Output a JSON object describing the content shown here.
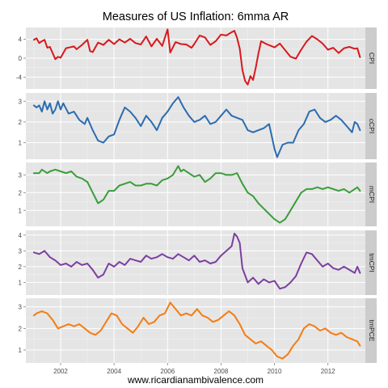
{
  "chart_data": {
    "type": "line",
    "title": "Measures of US Inflation: 6mma AR",
    "caption": "www.ricardianambivalence.com",
    "x_ticks": [
      "2002",
      "2004",
      "2006",
      "2008",
      "2010",
      "2012"
    ],
    "xlim": [
      2000.7,
      2013.4
    ],
    "grid": true,
    "panels": [
      {
        "name": "CPI",
        "color": "#d7191c",
        "ylim": [
          -6.5,
          6.5
        ],
        "y_ticks": [
          4,
          0,
          -4
        ],
        "y_tick_labels": [
          "4",
          "0",
          "-4"
        ],
        "x": [
          2001.0,
          2001.1,
          2001.2,
          2001.3,
          2001.4,
          2001.5,
          2001.6,
          2001.7,
          2001.8,
          2001.9,
          2002.0,
          2002.2,
          2002.5,
          2002.6,
          2002.8,
          2003.0,
          2003.1,
          2003.2,
          2003.4,
          2003.6,
          2003.8,
          2004.0,
          2004.2,
          2004.4,
          2004.6,
          2004.8,
          2005.0,
          2005.2,
          2005.4,
          2005.6,
          2005.8,
          2006.0,
          2006.1,
          2006.3,
          2006.5,
          2006.7,
          2006.9,
          2007.0,
          2007.2,
          2007.4,
          2007.6,
          2007.8,
          2008.0,
          2008.2,
          2008.4,
          2008.5,
          2008.6,
          2008.7,
          2008.8,
          2008.9,
          2009.0,
          2009.1,
          2009.2,
          2009.3,
          2009.4,
          2009.5,
          2009.7,
          2010.0,
          2010.2,
          2010.4,
          2010.6,
          2010.8,
          2011.0,
          2011.2,
          2011.3,
          2011.4,
          2011.6,
          2011.8,
          2012.0,
          2012.2,
          2012.4,
          2012.6,
          2012.8,
          2013.0,
          2013.1,
          2013.2
        ],
        "y": [
          3.9,
          4.2,
          3.2,
          3.6,
          3.9,
          2.2,
          2.4,
          1.1,
          -0.2,
          0.3,
          0.1,
          2.1,
          2.5,
          1.9,
          2.8,
          3.9,
          1.5,
          1.3,
          3.3,
          2.8,
          3.9,
          3.0,
          4.0,
          3.3,
          4.1,
          3.2,
          2.9,
          4.6,
          2.5,
          4.1,
          2.6,
          6.1,
          1.2,
          3.4,
          3.0,
          2.9,
          2.2,
          3.0,
          4.8,
          4.4,
          2.8,
          3.6,
          5.0,
          4.8,
          5.5,
          5.8,
          4.3,
          2.0,
          -2.5,
          -4.8,
          -5.6,
          -3.8,
          -4.6,
          -2.0,
          1.0,
          3.6,
          3.0,
          2.3,
          3.1,
          1.7,
          0.3,
          -0.1,
          1.8,
          3.5,
          4.1,
          4.7,
          4.0,
          3.1,
          1.8,
          2.2,
          1.1,
          2.1,
          2.4,
          2.0,
          2.1,
          0.2
        ]
      },
      {
        "name": "cCPI",
        "color": "#2b6cb0",
        "ylim": [
          0.2,
          3.4
        ],
        "y_ticks": [
          1,
          2,
          3
        ],
        "y_tick_labels": [
          "1",
          "2",
          "3"
        ],
        "x": [
          2001.0,
          2001.1,
          2001.2,
          2001.3,
          2001.4,
          2001.5,
          2001.6,
          2001.7,
          2001.8,
          2001.9,
          2002.0,
          2002.1,
          2002.3,
          2002.5,
          2002.7,
          2002.9,
          2003.0,
          2003.2,
          2003.4,
          2003.6,
          2003.8,
          2004.0,
          2004.2,
          2004.4,
          2004.6,
          2004.8,
          2005.0,
          2005.2,
          2005.4,
          2005.6,
          2005.8,
          2006.0,
          2006.2,
          2006.4,
          2006.6,
          2006.8,
          2007.0,
          2007.2,
          2007.4,
          2007.6,
          2007.8,
          2008.0,
          2008.2,
          2008.4,
          2008.6,
          2008.8,
          2009.0,
          2009.2,
          2009.4,
          2009.6,
          2009.8,
          2010.0,
          2010.1,
          2010.3,
          2010.5,
          2010.7,
          2010.9,
          2011.1,
          2011.3,
          2011.5,
          2011.7,
          2011.9,
          2012.1,
          2012.3,
          2012.5,
          2012.7,
          2012.9,
          2013.0,
          2013.1,
          2013.2
        ],
        "y": [
          2.8,
          2.7,
          2.8,
          2.5,
          3.0,
          2.6,
          2.9,
          2.4,
          2.6,
          3.0,
          2.6,
          2.9,
          2.4,
          2.5,
          2.1,
          1.9,
          2.2,
          1.6,
          1.1,
          1.0,
          1.3,
          1.4,
          2.1,
          2.7,
          2.5,
          2.2,
          1.8,
          2.3,
          2.0,
          1.6,
          2.2,
          2.5,
          2.9,
          3.2,
          2.7,
          2.3,
          2.0,
          2.1,
          2.3,
          1.9,
          2.0,
          2.3,
          2.6,
          2.3,
          2.2,
          2.1,
          1.6,
          1.5,
          1.6,
          1.7,
          1.9,
          0.7,
          0.3,
          0.9,
          1.0,
          1.0,
          1.6,
          1.9,
          2.5,
          2.6,
          2.2,
          2.0,
          2.1,
          2.3,
          2.1,
          1.8,
          1.5,
          2.0,
          1.9,
          1.6
        ]
      },
      {
        "name": "mCPI",
        "color": "#3a9d3a",
        "ylim": [
          0.1,
          3.7
        ],
        "y_ticks": [
          1,
          2,
          3
        ],
        "y_tick_labels": [
          "1",
          "2",
          "3"
        ],
        "x": [
          2001.0,
          2001.2,
          2001.3,
          2001.5,
          2001.6,
          2001.8,
          2002.0,
          2002.2,
          2002.4,
          2002.6,
          2002.8,
          2003.0,
          2003.2,
          2003.4,
          2003.6,
          2003.8,
          2004.0,
          2004.2,
          2004.4,
          2004.6,
          2004.8,
          2005.0,
          2005.2,
          2005.4,
          2005.6,
          2005.8,
          2006.0,
          2006.2,
          2006.4,
          2006.5,
          2006.6,
          2006.8,
          2007.0,
          2007.2,
          2007.4,
          2007.6,
          2007.8,
          2008.0,
          2008.2,
          2008.4,
          2008.6,
          2008.8,
          2009.0,
          2009.2,
          2009.4,
          2009.6,
          2009.8,
          2010.0,
          2010.2,
          2010.4,
          2010.6,
          2010.8,
          2011.0,
          2011.2,
          2011.4,
          2011.6,
          2011.8,
          2012.0,
          2012.2,
          2012.4,
          2012.6,
          2012.8,
          2013.0,
          2013.1,
          2013.2
        ],
        "y": [
          3.1,
          3.1,
          3.3,
          3.1,
          3.2,
          3.3,
          3.2,
          3.1,
          3.2,
          2.9,
          2.8,
          2.6,
          2.0,
          1.4,
          1.6,
          2.1,
          2.1,
          2.4,
          2.5,
          2.6,
          2.4,
          2.4,
          2.5,
          2.5,
          2.4,
          2.7,
          2.8,
          3.0,
          3.5,
          3.2,
          3.3,
          3.1,
          2.9,
          3.0,
          2.6,
          2.8,
          3.1,
          3.1,
          3.0,
          3.0,
          3.1,
          2.5,
          2.0,
          1.8,
          1.4,
          1.1,
          0.8,
          0.5,
          0.3,
          0.5,
          1.0,
          1.5,
          2.0,
          2.2,
          2.2,
          2.3,
          2.2,
          2.3,
          2.2,
          2.1,
          2.2,
          2.0,
          2.2,
          2.3,
          2.1
        ]
      },
      {
        "name": "tmCPI",
        "color": "#7b3fa0",
        "ylim": [
          0.2,
          4.3
        ],
        "y_ticks": [
          1,
          2,
          3,
          4
        ],
        "y_tick_labels": [
          "1",
          "2",
          "3",
          "4"
        ],
        "x": [
          2001.0,
          2001.2,
          2001.4,
          2001.6,
          2001.8,
          2002.0,
          2002.2,
          2002.4,
          2002.6,
          2002.8,
          2003.0,
          2003.2,
          2003.4,
          2003.6,
          2003.8,
          2004.0,
          2004.2,
          2004.4,
          2004.6,
          2004.8,
          2005.0,
          2005.2,
          2005.4,
          2005.6,
          2005.8,
          2006.0,
          2006.2,
          2006.4,
          2006.6,
          2006.8,
          2007.0,
          2007.2,
          2007.4,
          2007.6,
          2007.8,
          2008.0,
          2008.2,
          2008.4,
          2008.5,
          2008.6,
          2008.7,
          2008.8,
          2009.0,
          2009.2,
          2009.4,
          2009.6,
          2009.8,
          2010.0,
          2010.2,
          2010.4,
          2010.6,
          2010.8,
          2011.0,
          2011.2,
          2011.4,
          2011.6,
          2011.8,
          2012.0,
          2012.2,
          2012.4,
          2012.6,
          2012.8,
          2013.0,
          2013.1,
          2013.2
        ],
        "y": [
          2.9,
          2.8,
          3.0,
          2.6,
          2.4,
          2.1,
          2.2,
          2.0,
          2.3,
          2.1,
          2.2,
          1.8,
          1.3,
          1.5,
          2.2,
          2.0,
          2.3,
          2.1,
          2.5,
          2.4,
          2.3,
          2.7,
          2.5,
          2.6,
          2.8,
          2.6,
          2.5,
          2.8,
          2.6,
          2.4,
          2.7,
          2.3,
          2.4,
          2.2,
          2.3,
          2.7,
          3.0,
          3.3,
          4.1,
          3.9,
          3.5,
          1.9,
          1.0,
          1.3,
          0.9,
          1.2,
          1.0,
          1.1,
          0.6,
          0.7,
          1.0,
          1.4,
          2.2,
          2.9,
          2.8,
          2.4,
          2.0,
          2.2,
          1.9,
          1.8,
          2.0,
          1.8,
          1.6,
          2.0,
          1.6
        ]
      },
      {
        "name": "tmPCE",
        "color": "#f57c12",
        "ylim": [
          0.4,
          3.4
        ],
        "y_ticks": [
          1,
          2,
          3
        ],
        "y_tick_labels": [
          "1",
          "2",
          "3"
        ],
        "x": [
          2001.0,
          2001.1,
          2001.3,
          2001.5,
          2001.7,
          2001.9,
          2002.1,
          2002.3,
          2002.5,
          2002.7,
          2002.9,
          2003.1,
          2003.3,
          2003.5,
          2003.7,
          2003.9,
          2004.1,
          2004.3,
          2004.5,
          2004.7,
          2004.9,
          2005.1,
          2005.3,
          2005.5,
          2005.7,
          2005.9,
          2006.1,
          2006.3,
          2006.5,
          2006.7,
          2006.9,
          2007.1,
          2007.3,
          2007.5,
          2007.7,
          2007.9,
          2008.1,
          2008.3,
          2008.5,
          2008.7,
          2008.9,
          2009.1,
          2009.3,
          2009.5,
          2009.7,
          2009.9,
          2010.1,
          2010.3,
          2010.5,
          2010.7,
          2010.9,
          2011.1,
          2011.3,
          2011.5,
          2011.7,
          2011.9,
          2012.1,
          2012.3,
          2012.5,
          2012.7,
          2012.9,
          2013.1,
          2013.2
        ],
        "y": [
          2.6,
          2.7,
          2.8,
          2.7,
          2.4,
          2.0,
          2.1,
          2.2,
          2.1,
          2.2,
          2.0,
          1.8,
          1.7,
          1.9,
          2.3,
          2.7,
          2.6,
          2.2,
          2.0,
          1.8,
          2.1,
          2.5,
          2.2,
          2.3,
          2.6,
          2.7,
          3.2,
          2.9,
          2.6,
          2.7,
          2.6,
          2.9,
          2.6,
          2.5,
          2.3,
          2.4,
          2.6,
          2.8,
          2.6,
          2.2,
          1.7,
          1.5,
          1.3,
          1.4,
          1.2,
          1.0,
          0.7,
          0.6,
          0.8,
          1.2,
          1.5,
          2.0,
          2.2,
          2.1,
          1.9,
          2.0,
          1.8,
          1.7,
          1.8,
          1.6,
          1.5,
          1.4,
          1.2
        ]
      }
    ]
  }
}
